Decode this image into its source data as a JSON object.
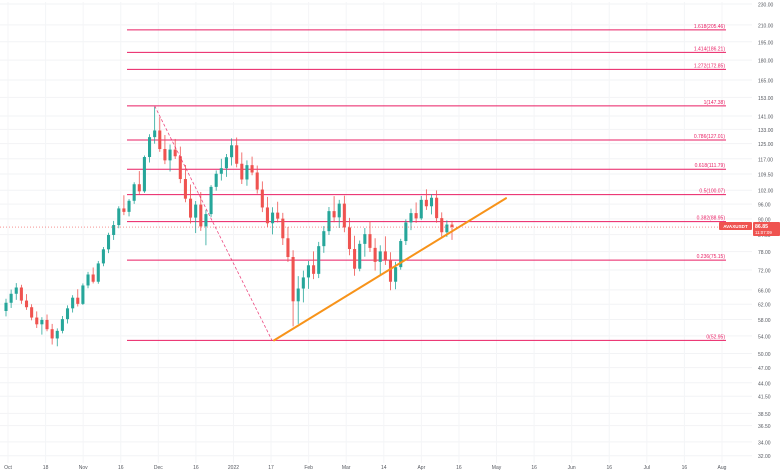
{
  "chart_data": {
    "type": "candlestick",
    "symbol_badge": "AVAXUSDT",
    "price_badge": "86.85",
    "countdown_badge": "11:07:09",
    "current_price": 86.85,
    "y_range": [
      31,
      232
    ],
    "y_scale": "log",
    "y_ticks": [
      "230.00",
      "210.00",
      "195.00",
      "180.00",
      "165.00",
      "153.00",
      "141.00",
      "133.00",
      "125.00",
      "117.00",
      "109.50",
      "102.00",
      "96.00",
      "90.00",
      "84.00",
      "78.00",
      "72.00",
      "66.00",
      "62.00",
      "58.00",
      "54.00",
      "50.00",
      "47.00",
      "44.00",
      "41.50",
      "38.50",
      "36.50",
      "34.00",
      "32.00"
    ],
    "x_ticks": [
      "Oct",
      "18",
      "Nov",
      "16",
      "Dec",
      "16",
      "2022",
      "17",
      "Feb",
      "Mar",
      "14",
      "Apr",
      "16",
      "May",
      "16",
      "Jun",
      "16",
      "Jul",
      "16",
      "Aug"
    ],
    "fib_levels": [
      {
        "label": "1.618(205.46)",
        "value": 205.46
      },
      {
        "label": "1.414(186.21)",
        "value": 186.21
      },
      {
        "label": "1.272(172.85)",
        "value": 172.85
      },
      {
        "label": "1(147.38)",
        "value": 147.38
      },
      {
        "label": "0.786(127.01)",
        "value": 127.01
      },
      {
        "label": "0.618(111.79)",
        "value": 111.79
      },
      {
        "label": "0.5(100.07)",
        "value": 100.07
      },
      {
        "label": "0.382(88.95)",
        "value": 88.95
      },
      {
        "label": "0.236(75.15)",
        "value": 75.15
      },
      {
        "label": "0(52.95)",
        "value": 52.95
      }
    ],
    "trendline": {
      "from": [
        0,
        52.95
      ],
      "to": [
        1,
        98.5
      ]
    },
    "candles_ohlc": [
      [
        60.2,
        63.5,
        58.8,
        62.4
      ],
      [
        62.4,
        66.1,
        61.0,
        64.9
      ],
      [
        64.9,
        68.0,
        63.2,
        66.7
      ],
      [
        66.7,
        67.5,
        62.1,
        63.0
      ],
      [
        63.0,
        64.8,
        60.5,
        61.2
      ],
      [
        61.2,
        62.0,
        57.8,
        58.5
      ],
      [
        58.5,
        60.1,
        55.9,
        56.8
      ],
      [
        56.8,
        58.6,
        54.3,
        57.9
      ],
      [
        57.9,
        59.3,
        55.1,
        55.6
      ],
      [
        55.6,
        56.9,
        52.0,
        53.4
      ],
      [
        53.4,
        55.8,
        51.6,
        55.2
      ],
      [
        55.2,
        58.9,
        54.6,
        58.1
      ],
      [
        58.1,
        61.7,
        57.0,
        60.9
      ],
      [
        60.9,
        64.5,
        59.8,
        63.8
      ],
      [
        63.8,
        66.2,
        61.4,
        62.1
      ],
      [
        62.1,
        67.9,
        61.8,
        67.3
      ],
      [
        67.3,
        71.4,
        66.5,
        70.6
      ],
      [
        70.6,
        72.8,
        67.9,
        68.4
      ],
      [
        68.4,
        74.9,
        67.8,
        74.1
      ],
      [
        74.1,
        79.6,
        73.2,
        78.8
      ],
      [
        78.8,
        84.7,
        77.5,
        83.9
      ],
      [
        83.9,
        89.2,
        82.1,
        87.6
      ],
      [
        87.6,
        95.1,
        86.4,
        94.2
      ],
      [
        94.2,
        99.8,
        91.5,
        92.8
      ],
      [
        92.8,
        98.1,
        91.0,
        97.4
      ],
      [
        97.4,
        105.6,
        96.1,
        104.7
      ],
      [
        104.7,
        110.9,
        100.2,
        101.5
      ],
      [
        101.5,
        118.7,
        100.8,
        117.9
      ],
      [
        117.9,
        130.2,
        115.1,
        128.6
      ],
      [
        128.6,
        146.8,
        125.0,
        132.4
      ],
      [
        132.4,
        140.3,
        120.6,
        122.1
      ],
      [
        122.1,
        129.8,
        114.3,
        116.2
      ],
      [
        116.2,
        124.5,
        110.7,
        121.8
      ],
      [
        121.8,
        127.6,
        116.9,
        118.3
      ],
      [
        118.3,
        123.4,
        105.2,
        107.1
      ],
      [
        107.1,
        113.9,
        96.8,
        98.3
      ],
      [
        98.3,
        104.6,
        88.2,
        90.5
      ],
      [
        90.5,
        97.3,
        84.6,
        95.8
      ],
      [
        95.8,
        101.2,
        85.4,
        87.1
      ],
      [
        87.1,
        93.6,
        80.2,
        91.9
      ],
      [
        91.9,
        104.3,
        90.7,
        103.5
      ],
      [
        103.5,
        111.2,
        101.8,
        109.6
      ],
      [
        109.6,
        117.0,
        106.4,
        112.3
      ],
      [
        112.3,
        119.5,
        108.1,
        117.8
      ],
      [
        117.8,
        127.9,
        113.6,
        124.1
      ],
      [
        124.1,
        128.4,
        112.7,
        114.5
      ],
      [
        114.5,
        120.3,
        104.8,
        106.9
      ],
      [
        106.9,
        116.2,
        104.0,
        113.8
      ],
      [
        113.8,
        118.1,
        108.9,
        110.2
      ],
      [
        110.2,
        113.6,
        100.5,
        102.3
      ],
      [
        102.3,
        106.0,
        92.7,
        94.6
      ],
      [
        94.6,
        99.1,
        86.8,
        88.3
      ],
      [
        88.3,
        94.7,
        84.1,
        92.5
      ],
      [
        92.5,
        97.0,
        88.6,
        90.1
      ],
      [
        90.1,
        92.4,
        80.3,
        82.7
      ],
      [
        82.7,
        86.9,
        74.6,
        76.2
      ],
      [
        76.2,
        78.5,
        56.3,
        62.8
      ],
      [
        62.8,
        70.1,
        56.9,
        66.4
      ],
      [
        66.4,
        71.8,
        62.5,
        69.7
      ],
      [
        69.7,
        74.9,
        66.3,
        73.5
      ],
      [
        73.5,
        78.1,
        69.2,
        70.8
      ],
      [
        70.8,
        81.4,
        69.5,
        79.9
      ],
      [
        79.9,
        87.2,
        77.6,
        85.3
      ],
      [
        85.3,
        94.8,
        83.9,
        93.1
      ],
      [
        93.1,
        99.4,
        88.7,
        90.6
      ],
      [
        90.6,
        97.8,
        86.5,
        96.2
      ],
      [
        96.2,
        99.6,
        84.9,
        86.7
      ],
      [
        86.7,
        90.4,
        76.8,
        78.9
      ],
      [
        78.9,
        83.6,
        70.2,
        72.4
      ],
      [
        72.4,
        81.9,
        71.6,
        80.7
      ],
      [
        80.7,
        86.5,
        76.3,
        84.2
      ],
      [
        84.2,
        89.0,
        77.9,
        79.3
      ],
      [
        79.3,
        82.7,
        71.8,
        74.6
      ],
      [
        74.6,
        80.2,
        70.5,
        78.1
      ],
      [
        78.1,
        83.4,
        73.6,
        75.2
      ],
      [
        75.2,
        77.8,
        65.9,
        68.4
      ],
      [
        68.4,
        74.6,
        66.2,
        72.9
      ],
      [
        72.9,
        82.5,
        72.1,
        81.7
      ],
      [
        81.7,
        89.8,
        80.3,
        88.6
      ],
      [
        88.6,
        94.1,
        85.7,
        92.3
      ],
      [
        92.3,
        96.7,
        88.4,
        90.2
      ],
      [
        90.2,
        99.5,
        89.6,
        97.8
      ],
      [
        97.8,
        102.4,
        93.6,
        95.1
      ],
      [
        95.1,
        100.2,
        91.8,
        98.7
      ],
      [
        98.7,
        101.9,
        88.5,
        90.3
      ],
      [
        90.3,
        92.6,
        82.7,
        84.9
      ],
      [
        84.9,
        89.4,
        83.2,
        87.8
      ],
      [
        87.8,
        89.2,
        82.1,
        86.85
      ]
    ]
  }
}
